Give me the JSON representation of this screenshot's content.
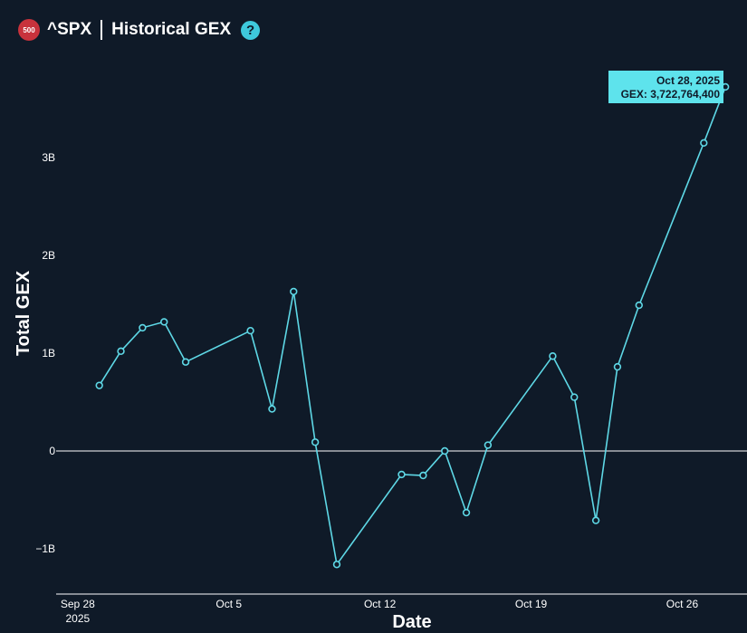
{
  "header": {
    "badge": "500",
    "ticker": "^SPX",
    "title": "Historical GEX",
    "help_icon": "?"
  },
  "colors": {
    "background": "#0f1a28",
    "line": "#5ed8e6",
    "badge": "#c8323c",
    "help": "#3ec9dc",
    "tooltip_bg": "#5ee3ec"
  },
  "chart_data": {
    "type": "line",
    "xlabel": "Date",
    "ylabel": "Total GEX",
    "x_ticks": [
      "Sep 28\n2025",
      "Oct 5",
      "Oct 12",
      "Oct 19",
      "Oct 26"
    ],
    "y_ticks": [
      "−1B",
      "0",
      "1B",
      "2B",
      "3B"
    ],
    "xlim": [
      "2025-09-27",
      "2025-10-29"
    ],
    "ylim": [
      -1500000000,
      3800000000
    ],
    "grid": false,
    "zero_line": true,
    "series": [
      {
        "points": [
          {
            "x": "2025-09-29",
            "y": 670000000
          },
          {
            "x": "2025-09-30",
            "y": 1020000000
          },
          {
            "x": "2025-10-01",
            "y": 1260000000
          },
          {
            "x": "2025-10-02",
            "y": 1320000000
          },
          {
            "x": "2025-10-03",
            "y": 910000000
          },
          {
            "x": "2025-10-06",
            "y": 1230000000
          },
          {
            "x": "2025-10-07",
            "y": 430000000
          },
          {
            "x": "2025-10-08",
            "y": 1630000000
          },
          {
            "x": "2025-10-09",
            "y": 90000000
          },
          {
            "x": "2025-10-10",
            "y": -1160000000
          },
          {
            "x": "2025-10-13",
            "y": -240000000
          },
          {
            "x": "2025-10-14",
            "y": -250000000
          },
          {
            "x": "2025-10-15",
            "y": 0
          },
          {
            "x": "2025-10-16",
            "y": -630000000
          },
          {
            "x": "2025-10-17",
            "y": 60000000
          },
          {
            "x": "2025-10-20",
            "y": 970000000
          },
          {
            "x": "2025-10-21",
            "y": 550000000
          },
          {
            "x": "2025-10-22",
            "y": -710000000
          },
          {
            "x": "2025-10-23",
            "y": 860000000
          },
          {
            "x": "2025-10-24",
            "y": 1490000000
          },
          {
            "x": "2025-10-27",
            "y": 3150000000
          },
          {
            "x": "2025-10-28",
            "y": 3722764400
          }
        ]
      }
    ],
    "tooltip": {
      "date": "Oct 28, 2025",
      "value_text": "GEX: 3,722,764,400"
    }
  }
}
